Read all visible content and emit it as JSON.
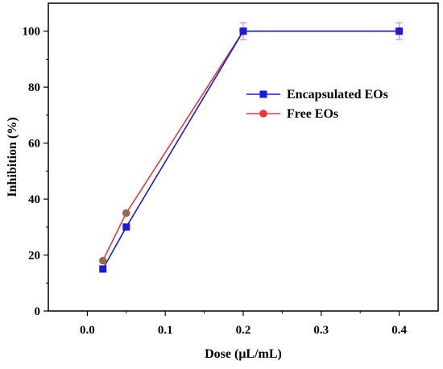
{
  "chart_data": {
    "type": "line",
    "title": "",
    "xlabel": "Dose (μL/mL)",
    "ylabel": "Inhibition (%)",
    "x_categories": [
      "0.0",
      "0.1",
      "0.2",
      "0.3",
      "0.4"
    ],
    "y_ticks": [
      0,
      20,
      40,
      60,
      80,
      100
    ],
    "x_tick_labels": [
      "0.0",
      "0.1",
      "0.2",
      "0.3",
      "0.4"
    ],
    "ylim": [
      0,
      110
    ],
    "grid": false,
    "legend_position": "right-middle",
    "series": [
      {
        "name": "Encapsulated EOs",
        "color": "#1a1adc",
        "marker": "square",
        "x_positions": [
          0.02,
          0.05,
          0.2,
          0.4
        ],
        "x_display": [
          0.02,
          0.05,
          0.2,
          0.4
        ],
        "values": [
          15,
          30,
          100,
          100
        ],
        "error": [
          0,
          0,
          3,
          3
        ]
      },
      {
        "name": "Free EOs",
        "color": "#e8373f",
        "marker": "circle",
        "x_positions": [
          0.02,
          0.05,
          0.2,
          0.4
        ],
        "x_display": [
          0.02,
          0.05,
          0.2,
          0.4
        ],
        "values": [
          18,
          35,
          100,
          100
        ],
        "error": [
          0,
          0,
          3,
          3
        ]
      }
    ]
  }
}
